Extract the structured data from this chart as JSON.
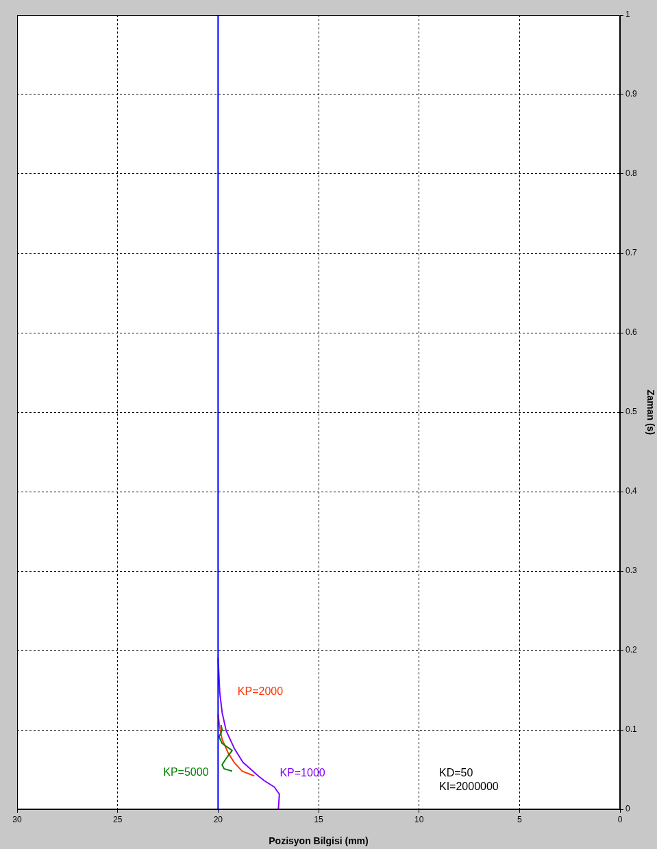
{
  "chart_data": {
    "type": "line",
    "xlabel": "Pozisyon Bilgisi (mm)",
    "ylabel": "Zaman (s)",
    "xlim": [
      30,
      0
    ],
    "xticks": [
      0,
      5,
      10,
      15,
      20,
      25,
      30
    ],
    "ylim": [
      0,
      1
    ],
    "yticks": [
      0,
      0.1,
      0.2,
      0.3,
      0.4,
      0.5,
      0.6,
      0.7,
      0.8,
      0.9,
      1
    ],
    "grid": true,
    "legend": false,
    "marker": "none",
    "annotations": [
      "KD=50",
      "KI=2000000"
    ],
    "series": [
      {
        "color": "#0000ff",
        "x": [
          20,
          20
        ],
        "values": [
          0,
          1
        ]
      },
      {
        "name": "KP=5000",
        "color": "#008000",
        "x": [
          19.3,
          19.7,
          19.8,
          19.6,
          19.3,
          19.8,
          19.95,
          19.8,
          19.85
        ],
        "values": [
          0.048,
          0.051,
          0.056,
          0.064,
          0.074,
          0.083,
          0.091,
          0.1,
          0.106
        ]
      },
      {
        "name": "KP=2000",
        "color": "#ff3300",
        "x": [
          18.2,
          18.8,
          19.2,
          19.5,
          19.8,
          19.93,
          20
        ],
        "values": [
          0.042,
          0.048,
          0.059,
          0.071,
          0.088,
          0.105,
          0.12
        ]
      },
      {
        "name": "KP=1000",
        "color": "#8000ff",
        "x": [
          17,
          16.95,
          17.2,
          17.7,
          18,
          18.76,
          19.2,
          19.6,
          19.8,
          19.92,
          20
        ],
        "values": [
          0,
          0.019,
          0.028,
          0.036,
          0.042,
          0.059,
          0.077,
          0.099,
          0.122,
          0.148,
          0.191
        ]
      }
    ]
  }
}
